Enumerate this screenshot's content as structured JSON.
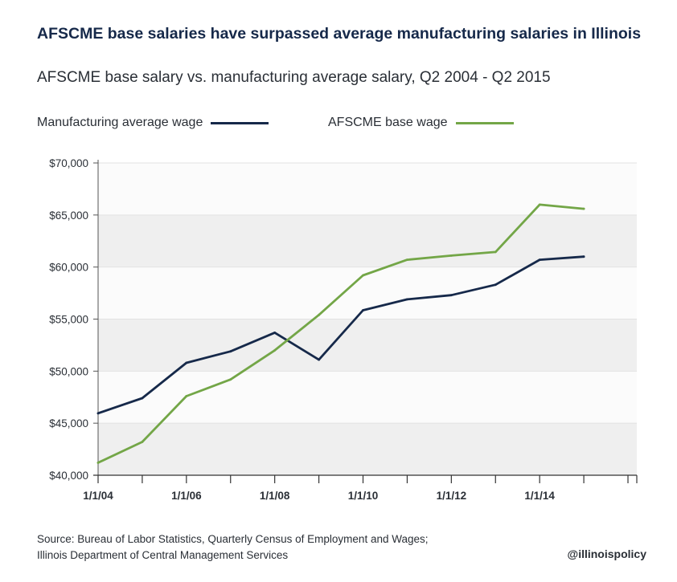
{
  "title": "AFSCME base salaries have surpassed average manufacturing salaries in Illinois",
  "subtitle": "AFSCME base salary vs. manufacturing average salary, Q2 2004 - Q2 2015",
  "source_line1": "Source: Bureau of Labor Statistics, Quarterly Census of Employment and Wages;",
  "source_line2": "Illinois Department of Central Management Services",
  "handle": "@illinoispolicy",
  "colors": {
    "manufacturing": "#16294a",
    "afscme": "#73a647",
    "band": "#efefef"
  },
  "chart_data": {
    "type": "line",
    "x": [
      2004,
      2005,
      2006,
      2007,
      2008,
      2009,
      2010,
      2011,
      2012,
      2013,
      2014,
      2015
    ],
    "xticks": [
      {
        "x": 2004,
        "label": "1/1/04"
      },
      {
        "x": 2006,
        "label": "1/1/06"
      },
      {
        "x": 2008,
        "label": "1/1/08"
      },
      {
        "x": 2010,
        "label": "1/1/10"
      },
      {
        "x": 2012,
        "label": "1/1/12"
      },
      {
        "x": 2014,
        "label": "1/1/14"
      }
    ],
    "xlim": [
      2004,
      2016.2
    ],
    "ylim": [
      40000,
      70000
    ],
    "yticks": [
      {
        "v": 40000,
        "label": "$40,000"
      },
      {
        "v": 45000,
        "label": "$45,000"
      },
      {
        "v": 50000,
        "label": "$50,000"
      },
      {
        "v": 55000,
        "label": "$55,000"
      },
      {
        "v": 60000,
        "label": "$60,000"
      },
      {
        "v": 65000,
        "label": "$65,000"
      },
      {
        "v": 70000,
        "label": "$70,000"
      }
    ],
    "series": [
      {
        "name": "Manufacturing average wage",
        "color": "#16294a",
        "values": [
          45950,
          47400,
          50800,
          51900,
          53700,
          51100,
          55850,
          56900,
          57300,
          58300,
          60700,
          61000
        ]
      },
      {
        "name": "AFSCME base wage",
        "color": "#73a647",
        "values": [
          41200,
          43200,
          47600,
          49200,
          52000,
          55400,
          59200,
          60700,
          61100,
          61450,
          66000,
          65600
        ]
      }
    ],
    "grid": "alternating horizontal bands",
    "legend": "top"
  }
}
